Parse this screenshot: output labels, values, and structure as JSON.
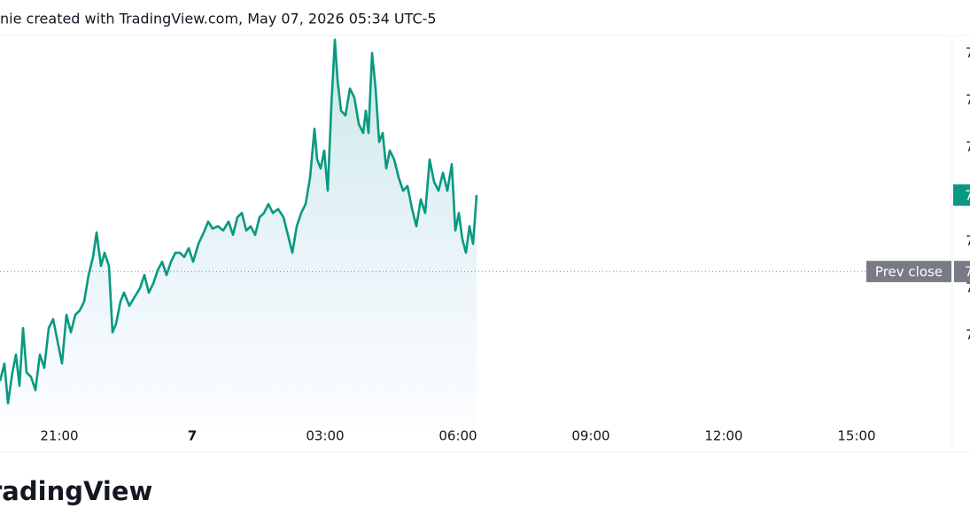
{
  "header": "nie created with TradingView.com, May 07, 2026 05:34 UTC-5",
  "logo": "radingView",
  "chart_data": {
    "type": "area",
    "color": "#089981",
    "x": [
      19.66,
      19.76,
      19.84,
      19.94,
      20.02,
      20.1,
      20.18,
      20.26,
      20.36,
      20.46,
      20.56,
      20.66,
      20.76,
      20.86,
      20.96,
      21.06,
      21.16,
      21.26,
      21.36,
      21.46,
      21.56,
      21.66,
      21.76,
      21.84,
      21.94,
      22.02,
      22.12,
      22.2,
      22.28,
      22.38,
      22.46,
      22.58,
      22.7,
      22.82,
      22.92,
      23.02,
      23.12,
      23.22,
      23.32,
      23.42,
      23.52,
      23.62,
      23.72,
      23.82,
      23.92,
      24.02,
      24.14,
      24.26,
      24.36,
      24.46,
      24.58,
      24.7,
      24.82,
      24.92,
      25.02,
      25.12,
      25.22,
      25.32,
      25.42,
      25.52,
      25.62,
      25.72,
      25.82,
      25.94,
      26.06,
      26.16,
      26.26,
      26.36,
      26.46,
      26.56,
      26.66,
      26.76,
      26.82,
      26.9,
      26.98,
      27.06,
      27.14,
      27.22,
      27.28,
      27.36,
      27.46,
      27.56,
      27.66,
      27.76,
      27.86,
      27.92,
      27.98,
      28.06,
      28.14,
      28.22,
      28.3,
      28.38,
      28.46,
      28.56,
      28.66,
      28.76,
      28.86,
      28.96,
      29.06,
      29.16,
      29.26,
      29.36,
      29.46,
      29.56,
      29.66,
      29.76,
      29.86,
      29.94,
      30.02,
      30.1,
      30.18,
      30.26,
      30.34,
      30.42
    ],
    "values": [
      11.4,
      15.9,
      5.7,
      13.6,
      18.2,
      10.2,
      25,
      13.6,
      12.5,
      9.1,
      18.2,
      14.8,
      25,
      27.3,
      21.6,
      15.9,
      28.4,
      23.9,
      28.4,
      29.5,
      31.8,
      38.6,
      43.2,
      49.5,
      40.9,
      44.3,
      40.9,
      23.9,
      26.1,
      31.8,
      34.1,
      30.7,
      33,
      35.2,
      38.6,
      34.1,
      36.4,
      39.8,
      42,
      38.6,
      42,
      44.3,
      44.3,
      43.2,
      45.5,
      42,
      46.6,
      49.5,
      52.3,
      50.5,
      51.1,
      50,
      52.3,
      48.9,
      53.4,
      54.5,
      50,
      51.1,
      48.9,
      53.4,
      54.5,
      56.8,
      54.5,
      55.5,
      53.4,
      48.9,
      44.3,
      51.1,
      54.5,
      56.8,
      63.6,
      76.1,
      68.2,
      65.9,
      70.5,
      60.2,
      81.8,
      98.9,
      88.6,
      80.7,
      79.5,
      86.4,
      84.1,
      77.3,
      75,
      80.7,
      75,
      95.5,
      86.4,
      72.7,
      75,
      65.9,
      70.5,
      68.2,
      63.6,
      60.2,
      61.4,
      55.7,
      51.1,
      58,
      54.5,
      68.2,
      62.5,
      60.2,
      64.8,
      60.2,
      67,
      50,
      54.5,
      47.7,
      44.3,
      51.1,
      46.6,
      59.1
    ],
    "xlim": [
      19.66,
      41.16
    ],
    "xticks": [
      {
        "value": 21,
        "label": "21:00"
      },
      {
        "value": 24,
        "label": "7"
      },
      {
        "value": 27,
        "label": "03:00"
      },
      {
        "value": 30,
        "label": "06:00"
      },
      {
        "value": 33,
        "label": "09:00"
      },
      {
        "value": 36,
        "label": "12:00"
      },
      {
        "value": 39,
        "label": "15:00"
      }
    ],
    "ylim": [
      0,
      100
    ],
    "prev_close": 39.5,
    "prev_close_label": "Prev close",
    "prev_close_box_label": "7",
    "last_value_label": "7",
    "price_scale_labels": [
      "7",
      "7",
      "7",
      "7",
      "7",
      "7",
      "7"
    ]
  }
}
